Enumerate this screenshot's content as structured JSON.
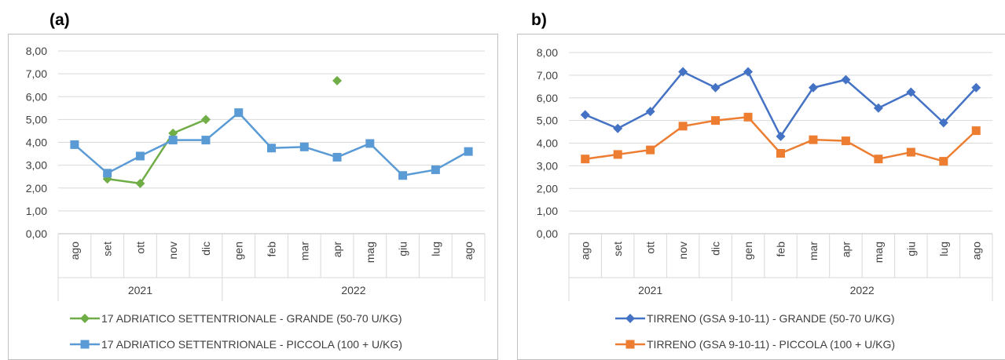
{
  "panels": [
    {
      "label": "(a)"
    },
    {
      "label": "b)"
    }
  ],
  "chart_data": [
    {
      "type": "line",
      "x_groups": [
        {
          "label": "2021",
          "categories": [
            "ago",
            "set",
            "ott",
            "nov",
            "dic"
          ]
        },
        {
          "label": "2022",
          "categories": [
            "gen",
            "feb",
            "mar",
            "apr",
            "mag",
            "giu",
            "lug",
            "ago"
          ]
        }
      ],
      "categories": [
        "ago",
        "set",
        "ott",
        "nov",
        "dic",
        "gen",
        "feb",
        "mar",
        "apr",
        "mag",
        "giu",
        "lug",
        "ago"
      ],
      "ylim": [
        0,
        8
      ],
      "yticks": [
        "0,00",
        "1,00",
        "2,00",
        "3,00",
        "4,00",
        "5,00",
        "6,00",
        "7,00",
        "8,00"
      ],
      "grid": true,
      "legend_position": "bottom",
      "series": [
        {
          "name": "17 ADRIATICO SETTENTRIONALE - GRANDE (50-70 U/KG)",
          "color": "#70ad47",
          "marker": "diamond",
          "values": [
            null,
            2.4,
            2.2,
            4.4,
            5.0,
            null,
            null,
            null,
            6.7,
            null,
            null,
            null,
            null
          ]
        },
        {
          "name": "17 ADRIATICO SETTENTRIONALE - PICCOLA (100 + U/KG)",
          "color": "#5b9bd5",
          "marker": "square",
          "values": [
            3.9,
            2.65,
            3.4,
            4.1,
            4.1,
            5.3,
            3.75,
            3.8,
            3.35,
            3.95,
            2.55,
            2.8,
            3.6
          ]
        }
      ]
    },
    {
      "type": "line",
      "x_groups": [
        {
          "label": "2021",
          "categories": [
            "ago",
            "set",
            "ott",
            "nov",
            "dic"
          ]
        },
        {
          "label": "2022",
          "categories": [
            "gen",
            "feb",
            "mar",
            "apr",
            "mag",
            "giu",
            "lug",
            "ago"
          ]
        }
      ],
      "categories": [
        "ago",
        "set",
        "ott",
        "nov",
        "dic",
        "gen",
        "feb",
        "mar",
        "apr",
        "mag",
        "giu",
        "lug",
        "ago"
      ],
      "ylim": [
        0,
        8
      ],
      "yticks": [
        "0,00",
        "1,00",
        "2,00",
        "3,00",
        "4,00",
        "5,00",
        "6,00",
        "7,00",
        "8,00"
      ],
      "grid": true,
      "legend_position": "bottom",
      "series": [
        {
          "name": "TIRRENO (GSA 9-10-11) - GRANDE (50-70 U/KG)",
          "color": "#4472c4",
          "marker": "diamond",
          "values": [
            5.25,
            4.65,
            5.4,
            7.15,
            6.45,
            7.15,
            4.3,
            6.45,
            6.8,
            5.55,
            6.25,
            4.9,
            6.45
          ]
        },
        {
          "name": "TIRRENO (GSA 9-10-11) - PICCOLA (100 + U/KG)",
          "color": "#ed7d31",
          "marker": "square",
          "values": [
            3.3,
            3.5,
            3.7,
            4.75,
            5.0,
            5.15,
            3.55,
            4.15,
            4.1,
            3.3,
            3.6,
            3.2,
            4.55
          ]
        }
      ]
    }
  ]
}
